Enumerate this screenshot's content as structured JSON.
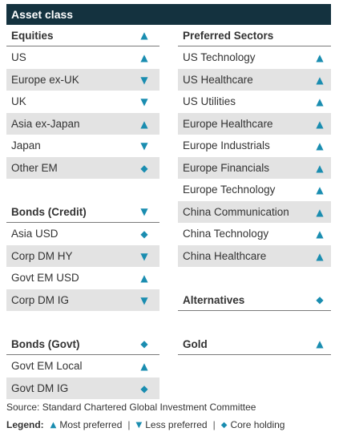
{
  "title": "Asset class",
  "symbols": {
    "up": "▲",
    "down": "▼",
    "core": "◆"
  },
  "colors": {
    "header_bg": "#14323f",
    "accent": "#1a8db0",
    "shade": "#e3e3e3"
  },
  "left": {
    "equities": {
      "header": {
        "label": "Equities",
        "symbol": "▲"
      },
      "rows": [
        {
          "label": "US",
          "symbol": "▲"
        },
        {
          "label": "Europe ex-UK",
          "symbol": "▼"
        },
        {
          "label": "UK",
          "symbol": "▼"
        },
        {
          "label": "Asia ex-Japan",
          "symbol": "▲"
        },
        {
          "label": "Japan",
          "symbol": "▼"
        },
        {
          "label": "Other EM",
          "symbol": "◆"
        }
      ]
    },
    "bonds_credit": {
      "header": {
        "label": "Bonds (Credit)",
        "symbol": "▼"
      },
      "rows": [
        {
          "label": "Asia USD",
          "symbol": "◆"
        },
        {
          "label": "Corp DM HY",
          "symbol": "▼"
        },
        {
          "label": "Govt EM USD",
          "symbol": "▲"
        },
        {
          "label": "Corp DM IG",
          "symbol": "▼"
        }
      ]
    },
    "bonds_govt": {
      "header": {
        "label": "Bonds (Govt)",
        "symbol": "◆"
      },
      "rows": [
        {
          "label": "Govt EM Local",
          "symbol": "▲"
        },
        {
          "label": "Govt DM IG",
          "symbol": "◆"
        }
      ]
    }
  },
  "right": {
    "preferred_sectors": {
      "header": {
        "label": "Preferred Sectors",
        "symbol": ""
      },
      "rows": [
        {
          "label": "US Technology",
          "symbol": "▲"
        },
        {
          "label": "US Healthcare",
          "symbol": "▲"
        },
        {
          "label": "US Utilities",
          "symbol": "▲"
        },
        {
          "label": "Europe Healthcare",
          "symbol": "▲"
        },
        {
          "label": "Europe Industrials",
          "symbol": "▲"
        },
        {
          "label": "Europe Financials",
          "symbol": "▲"
        },
        {
          "label": "Europe Technology",
          "symbol": "▲"
        },
        {
          "label": "China Communication",
          "symbol": "▲"
        },
        {
          "label": "China Technology",
          "symbol": "▲"
        },
        {
          "label": "China Healthcare",
          "symbol": "▲"
        }
      ]
    },
    "alternatives": {
      "header": {
        "label": "Alternatives",
        "symbol": "◆"
      }
    },
    "gold": {
      "header": {
        "label": "Gold",
        "symbol": "▲"
      }
    }
  },
  "source": "Source: Standard Chartered Global Investment Committee",
  "legend": {
    "title": "Legend:",
    "items": [
      {
        "symbol": "▲",
        "label": "Most preferred"
      },
      {
        "symbol": "▼",
        "label": "Less preferred"
      },
      {
        "symbol": "◆",
        "label": "Core holding"
      }
    ],
    "separator": "|"
  }
}
